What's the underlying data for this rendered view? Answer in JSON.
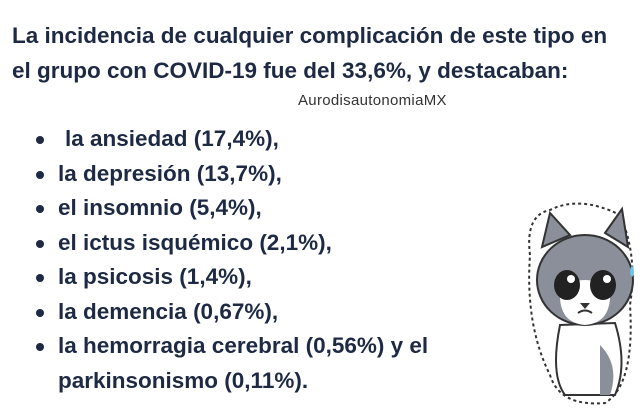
{
  "paragraph": "La incidencia de cualquier complicación de este tipo en el grupo con COVID-19 fue del 33,6%, y destacaban:",
  "watermark": "AurodisautonomiaMX",
  "items": [
    "la ansiedad (17,4%),",
    "la depresión (13,7%),",
    "el insomnio (5,4%),",
    "el ictus isquémico (2,1%),",
    "la psicosis (1,4%),",
    "la demencia (0,67%),",
    "la hemorragia cerebral (0,56%) y el parkinsonismo (0,11%)."
  ]
}
